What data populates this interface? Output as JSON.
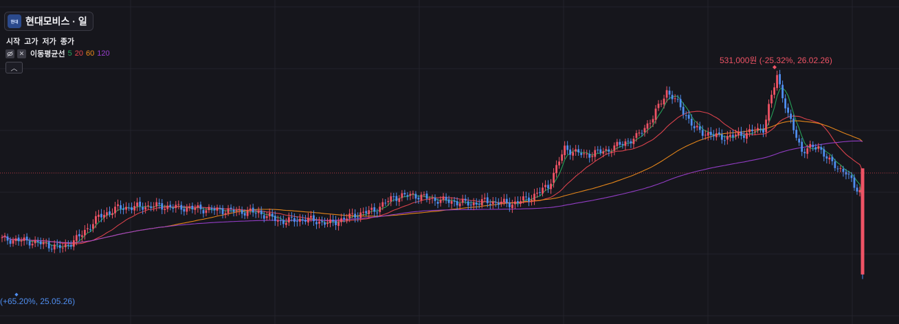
{
  "header": {
    "stock_title": "현대모비스 · 일",
    "logo_text": "현대"
  },
  "legend": {
    "ohlc_labels": [
      "시작",
      "고가",
      "저가",
      "종가"
    ],
    "ma_label": "이동평균선",
    "ma_periods": [
      {
        "period": "5",
        "color": "#26a65b"
      },
      {
        "period": "20",
        "color": "#e5454f"
      },
      {
        "period": "60",
        "color": "#f08c1a"
      },
      {
        "period": "120",
        "color": "#9a3fd0"
      }
    ],
    "hide_icon": "eye-slash-icon",
    "close_icon": "close-icon",
    "collapse_icon": "chevron-up-icon"
  },
  "annotations": {
    "high": "531,000원 (-25.32%, 26.02.26)",
    "low": "(+65.20%, 25.05.26)"
  },
  "colors": {
    "background": "#16161c",
    "up": "#ef5365",
    "down": "#4f8ef0",
    "grid": "#23232b",
    "price_line": "#e5454f"
  },
  "chart_data": {
    "type": "candlestick",
    "interval": "daily",
    "grid": true,
    "y_axis_labels": "not shown",
    "series": [
      {
        "name": "5",
        "type": "moving-average"
      },
      {
        "name": "20",
        "type": "moving-average"
      },
      {
        "name": "60",
        "type": "moving-average"
      },
      {
        "name": "120",
        "type": "moving-average"
      }
    ],
    "period_high": {
      "price": 531000,
      "change_pct": -25.32,
      "date": "26.02.26"
    },
    "period_low": {
      "change_pct": 65.2,
      "date": "25.05.26"
    },
    "anchors": [
      [
        0,
        0.26
      ],
      [
        10,
        0.25
      ],
      [
        22,
        0.22
      ],
      [
        28,
        0.27
      ],
      [
        35,
        0.36
      ],
      [
        42,
        0.4
      ],
      [
        55,
        0.41
      ],
      [
        68,
        0.4
      ],
      [
        80,
        0.39
      ],
      [
        93,
        0.38
      ],
      [
        101,
        0.34
      ],
      [
        110,
        0.35
      ],
      [
        119,
        0.33
      ],
      [
        128,
        0.37
      ],
      [
        135,
        0.39
      ],
      [
        142,
        0.45
      ],
      [
        149,
        0.46
      ],
      [
        156,
        0.44
      ],
      [
        163,
        0.43
      ],
      [
        170,
        0.42
      ],
      [
        175,
        0.43
      ],
      [
        185,
        0.42
      ],
      [
        192,
        0.45
      ],
      [
        198,
        0.5
      ],
      [
        204,
        0.67
      ],
      [
        211,
        0.64
      ],
      [
        219,
        0.66
      ],
      [
        230,
        0.72
      ],
      [
        236,
        0.81
      ],
      [
        241,
        0.93
      ],
      [
        246,
        0.86
      ],
      [
        251,
        0.76
      ],
      [
        257,
        0.73
      ],
      [
        263,
        0.72
      ],
      [
        270,
        0.74
      ],
      [
        276,
        0.76
      ],
      [
        281,
        1.0
      ],
      [
        285,
        0.82
      ],
      [
        290,
        0.66
      ],
      [
        296,
        0.68
      ],
      [
        300,
        0.61
      ],
      [
        306,
        0.56
      ],
      [
        309,
        0.5
      ],
      [
        311,
        0.48
      ],
      [
        312,
        0.1
      ]
    ]
  }
}
